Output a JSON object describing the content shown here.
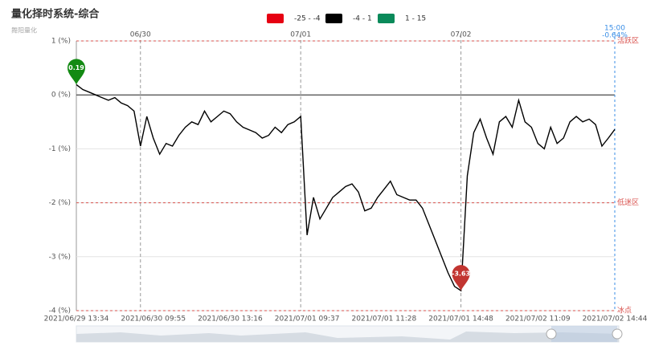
{
  "chart_data": {
    "type": "line",
    "title": "量化择时系统-综合",
    "subtitle": "舞阳量化",
    "pieces": [
      {
        "label": "-25 - -4",
        "min": -25,
        "max": -4,
        "color": "#e60012"
      },
      {
        "label": "-4 - 1",
        "min": -4,
        "max": 1,
        "color": "#000000"
      },
      {
        "label": "1 - 15",
        "min": 1,
        "max": 15,
        "color": "#0a8a5a"
      }
    ],
    "categories": [
      "2021/06/29 13:34",
      null,
      null,
      null,
      null,
      null,
      null,
      null,
      null,
      null,
      null,
      null,
      "2021/06/30 09:55",
      null,
      null,
      null,
      null,
      null,
      null,
      null,
      null,
      null,
      null,
      null,
      "2021/06/30 13:16",
      null,
      null,
      null,
      null,
      null,
      null,
      null,
      null,
      null,
      null,
      null,
      "2021/07/01 09:37",
      null,
      null,
      null,
      null,
      null,
      null,
      null,
      null,
      null,
      null,
      null,
      "2021/07/01 11:28",
      null,
      null,
      null,
      null,
      null,
      null,
      null,
      null,
      null,
      null,
      null,
      "2021/07/01 14:48",
      null,
      null,
      null,
      null,
      null,
      null,
      null,
      null,
      null,
      null,
      null,
      "2021/07/02 11:09",
      null,
      null,
      null,
      null,
      null,
      null,
      null,
      null,
      null,
      null,
      null,
      "2021/07/02 14:44"
    ],
    "values": [
      0.19,
      0.1,
      0.05,
      0.0,
      -0.05,
      -0.1,
      -0.05,
      -0.15,
      -0.2,
      -0.3,
      -0.95,
      -0.4,
      -0.8,
      -1.1,
      -0.9,
      -0.95,
      -0.75,
      -0.6,
      -0.5,
      -0.55,
      -0.3,
      -0.5,
      -0.4,
      -0.3,
      -0.35,
      -0.5,
      -0.6,
      -0.65,
      -0.7,
      -0.8,
      -0.75,
      -0.6,
      -0.7,
      -0.55,
      -0.5,
      -0.4,
      -2.6,
      -1.9,
      -2.3,
      -2.1,
      -1.9,
      -1.8,
      -1.7,
      -1.65,
      -1.8,
      -2.15,
      -2.1,
      -1.9,
      -1.75,
      -1.6,
      -1.85,
      -1.9,
      -1.95,
      -1.95,
      -2.1,
      -2.4,
      -2.7,
      -3.0,
      -3.3,
      -3.55,
      -3.63,
      -1.5,
      -0.7,
      -0.45,
      -0.8,
      -1.1,
      -0.5,
      -0.4,
      -0.6,
      -0.1,
      -0.5,
      -0.6,
      -0.9,
      -1.0,
      -0.6,
      -0.9,
      -0.8,
      -0.5,
      -0.4,
      -0.5,
      -0.45,
      -0.55,
      -0.95,
      -0.8,
      -0.64
    ],
    "ylim": [
      -4,
      1
    ],
    "yticks": [
      {
        "value": 1,
        "label": "1 (%)"
      },
      {
        "value": 0,
        "label": "0 (%)"
      },
      {
        "value": -1,
        "label": "-1 (%)"
      },
      {
        "value": -2,
        "label": "-2 (%)"
      },
      {
        "value": -3,
        "label": "-3 (%)"
      },
      {
        "value": -4,
        "label": "-4 (%)"
      }
    ],
    "grid": true,
    "day_breaks": [
      {
        "label": "06/30",
        "index": 10
      },
      {
        "label": "07/01",
        "index": 35
      },
      {
        "label": "07/02",
        "index": 60
      }
    ],
    "mark_lines": [
      {
        "value": 1,
        "label": "活跃区"
      },
      {
        "value": -2,
        "label": "低迷区"
      },
      {
        "value": -4,
        "label": "冰点"
      }
    ],
    "mark_line_color": "#d9534f",
    "mark_point_colors": {
      "max": "#138a13",
      "min": "#c23531"
    },
    "end_label": {
      "time": "15:00",
      "value": "-0.64%"
    },
    "end_color": "#3a8ee6"
  }
}
